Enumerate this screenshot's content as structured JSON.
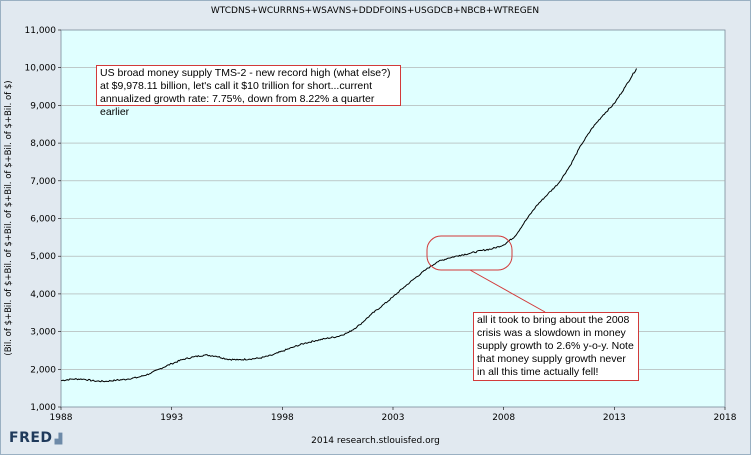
{
  "chart_data": {
    "type": "line",
    "title": "WTCDNS+WCURRNS+WSAVNS+DDDFOINS+USGDCB+NBCB+WTREGEN",
    "xlabel": "",
    "ylabel": "(Bil. of $+Bil. of $+Bil. of $+Bil. of $+Bil. of $+Bil. of $+Bil. of $)",
    "xlim": [
      1988,
      2018
    ],
    "ylim": [
      1000,
      11000
    ],
    "x_ticks": [
      "1988",
      "1993",
      "1998",
      "2003",
      "2008",
      "2013",
      "2018"
    ],
    "y_ticks": [
      "1,000",
      "2,000",
      "3,000",
      "4,000",
      "5,000",
      "6,000",
      "7,000",
      "8,000",
      "9,000",
      "10,000",
      "11,000"
    ],
    "grid": "horizontal",
    "series": [
      {
        "name": "",
        "color": "#000000",
        "points": [
          [
            1988.0,
            1700
          ],
          [
            1988.5,
            1740
          ],
          [
            1989.0,
            1740
          ],
          [
            1989.5,
            1690
          ],
          [
            1990.0,
            1680
          ],
          [
            1990.5,
            1710
          ],
          [
            1991.0,
            1740
          ],
          [
            1991.5,
            1790
          ],
          [
            1992.0,
            1880
          ],
          [
            1992.5,
            2020
          ],
          [
            1993.0,
            2150
          ],
          [
            1993.5,
            2260
          ],
          [
            1994.0,
            2330
          ],
          [
            1994.5,
            2380
          ],
          [
            1995.0,
            2350
          ],
          [
            1995.5,
            2270
          ],
          [
            1996.0,
            2250
          ],
          [
            1996.5,
            2270
          ],
          [
            1997.0,
            2300
          ],
          [
            1997.5,
            2370
          ],
          [
            1998.0,
            2480
          ],
          [
            1998.5,
            2590
          ],
          [
            1999.0,
            2690
          ],
          [
            1999.5,
            2760
          ],
          [
            2000.0,
            2820
          ],
          [
            2000.5,
            2870
          ],
          [
            2001.0,
            2980
          ],
          [
            2001.5,
            3180
          ],
          [
            2002.0,
            3450
          ],
          [
            2002.5,
            3680
          ],
          [
            2003.0,
            3920
          ],
          [
            2003.5,
            4180
          ],
          [
            2004.0,
            4420
          ],
          [
            2004.5,
            4650
          ],
          [
            2005.0,
            4850
          ],
          [
            2005.5,
            4950
          ],
          [
            2006.0,
            5020
          ],
          [
            2006.5,
            5080
          ],
          [
            2007.0,
            5150
          ],
          [
            2007.5,
            5200
          ],
          [
            2008.0,
            5300
          ],
          [
            2008.5,
            5520
          ],
          [
            2009.0,
            5950
          ],
          [
            2009.5,
            6350
          ],
          [
            2010.0,
            6650
          ],
          [
            2010.5,
            6950
          ],
          [
            2011.0,
            7400
          ],
          [
            2011.5,
            7950
          ],
          [
            2012.0,
            8400
          ],
          [
            2012.5,
            8750
          ],
          [
            2013.0,
            9050
          ],
          [
            2013.5,
            9500
          ],
          [
            2014.0,
            9978
          ]
        ]
      }
    ],
    "annotations": [
      {
        "text": "US broad money supply TMS-2 - new record high (what else?) at $9,978.11 billion, let's call it $10 trillion for short...current annualized growth rate: 7.75%, down from 8.22% a quarter earlier"
      },
      {
        "text": "all it took to bring about the 2008 crisis was a slowdown in money supply growth to 2.6% y-o-y. Note that money supply growth never in all this time actually fell!"
      }
    ],
    "annotation_color": "#d23a3a",
    "plot_background": "#e0ffff",
    "outer_background": "#e1e9f0"
  },
  "branding": {
    "logo": "FRED",
    "footer": "2014 research.stlouisfed.org"
  }
}
